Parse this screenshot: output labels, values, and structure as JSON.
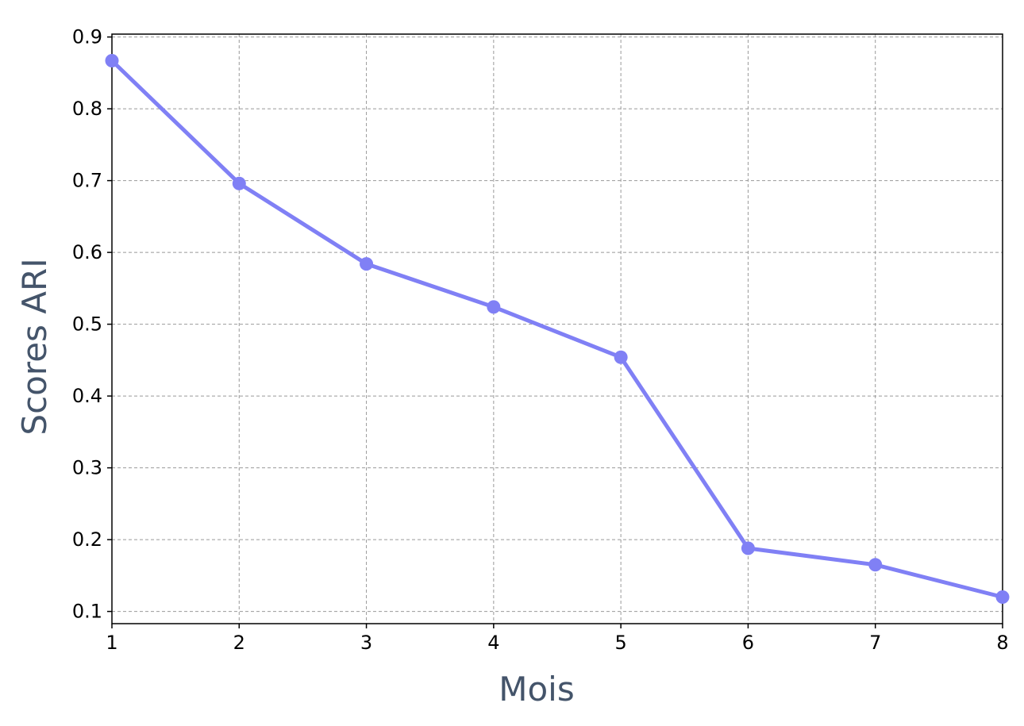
{
  "chart_data": {
    "type": "line",
    "title": "",
    "xlabel": "Mois",
    "ylabel": "Scores ARI",
    "xlim": [
      1,
      8
    ],
    "ylim": [
      0.083,
      0.904
    ],
    "x_ticks": [
      1,
      2,
      3,
      4,
      5,
      6,
      7,
      8
    ],
    "y_ticks": [
      0.1,
      0.2,
      0.3,
      0.4,
      0.5,
      0.6,
      0.7,
      0.8,
      0.9
    ],
    "grid": true,
    "legend": "none",
    "series": [
      {
        "color": "#8080f5",
        "marker": "circle",
        "x": [
          1,
          2,
          3,
          4,
          5,
          6,
          7,
          8
        ],
        "y": [
          0.867,
          0.696,
          0.584,
          0.524,
          0.454,
          0.188,
          0.165,
          0.12
        ]
      }
    ]
  }
}
